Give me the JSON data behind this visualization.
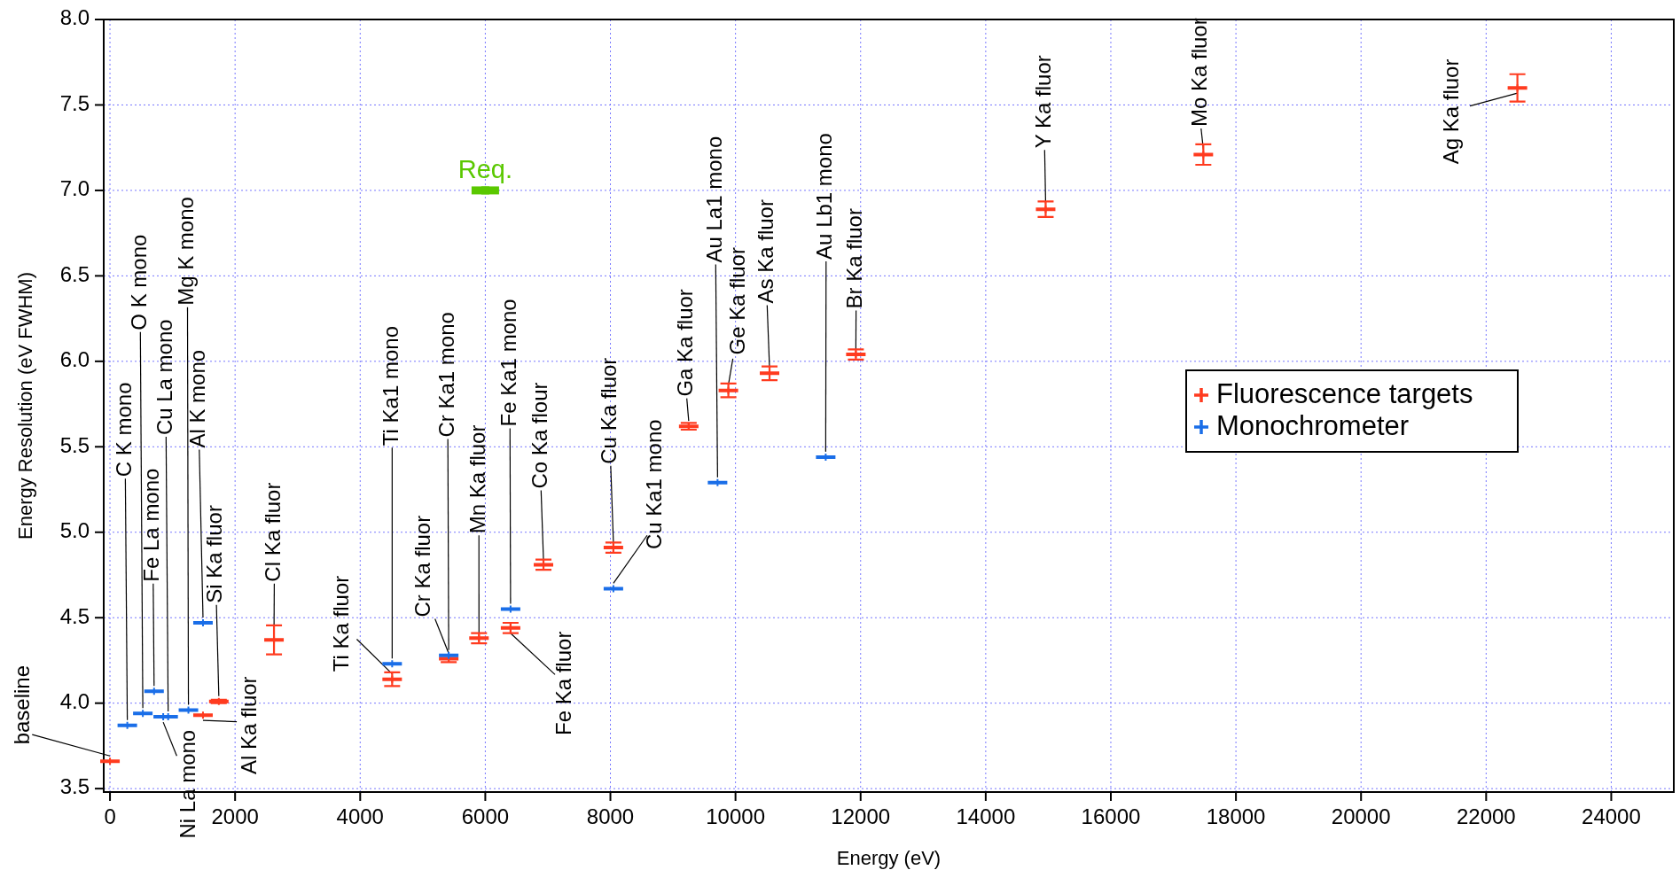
{
  "chart_data": {
    "type": "scatter",
    "xlabel": "Energy (eV)",
    "ylabel": "Energy Resolution (eV FWHM)",
    "xlim": [
      -100,
      25000
    ],
    "xticks": [
      0,
      2000,
      4000,
      6000,
      8000,
      10000,
      12000,
      14000,
      16000,
      18000,
      20000,
      22000,
      24000
    ],
    "ylim": [
      3.48,
      8.0
    ],
    "yticks": [
      3.5,
      {
        "value": 4,
        "label": "4.0"
      },
      4.5,
      {
        "value": 5,
        "label": "5.0"
      },
      5.5,
      {
        "value": 6,
        "label": "6.0"
      },
      6.5,
      {
        "value": 7,
        "label": "7.0"
      },
      7.5,
      {
        "value": 8,
        "label": "8.0"
      }
    ],
    "grid": true,
    "legend": "right",
    "marker": "cross",
    "series": [
      {
        "name": "Fluorescence targets",
        "color": "#ff3b1f",
        "x": [
          0,
          1487,
          1740,
          2622,
          4511,
          5415,
          5899,
          6404,
          6930,
          8048,
          9252,
          9886,
          10544,
          11924,
          14958,
          17479,
          22500
        ],
        "values": [
          3.66,
          3.93,
          4.01,
          4.37,
          4.14,
          4.26,
          4.38,
          4.44,
          4.81,
          4.91,
          5.62,
          5.83,
          5.93,
          6.04,
          6.89,
          7.21,
          7.6
        ],
        "errors": [
          null,
          null,
          0.01,
          0.085,
          0.04,
          0.02,
          0.03,
          0.03,
          0.03,
          0.03,
          0.02,
          0.04,
          0.04,
          0.03,
          0.045,
          0.06,
          0.08
        ]
      },
      {
        "name": "Monochrometer",
        "color": "#1a6ee8",
        "x": [
          277,
          525,
          705,
          851,
          930,
          1254,
          1487,
          4511,
          5415,
          6404,
          8048,
          9713,
          11442
        ],
        "values": [
          3.87,
          3.94,
          4.07,
          3.92,
          3.92,
          3.96,
          4.47,
          4.23,
          4.28,
          4.55,
          4.67,
          5.29,
          5.44
        ]
      },
      {
        "name": "Req.",
        "color": "#5ac800",
        "marker": "square",
        "x": [
          6000
        ],
        "values": [
          7.0
        ],
        "xerrors": [
          220
        ]
      }
    ],
    "annotations": [
      {
        "text": "baseline",
        "x": 0,
        "y": 3.66
      },
      {
        "text": "C K mono",
        "x": 277,
        "y": 3.87
      },
      {
        "text": "O K mono",
        "x": 525,
        "y": 3.94
      },
      {
        "text": "Fe La mono",
        "x": 705,
        "y": 4.07
      },
      {
        "text": "Cu La mono",
        "x": 930,
        "y": 3.92
      },
      {
        "text": "Ni La mono",
        "x": 851,
        "y": 3.92
      },
      {
        "text": "Mg K mono",
        "x": 1254,
        "y": 3.96
      },
      {
        "text": "Al K mono",
        "x": 1487,
        "y": 4.47
      },
      {
        "text": "Si Ka fluor",
        "x": 1740,
        "y": 4.01
      },
      {
        "text": "Al Ka fluor",
        "x": 1487,
        "y": 3.93
      },
      {
        "text": "Cl Ka fluor",
        "x": 2622,
        "y": 4.37
      },
      {
        "text": "Ti Ka fluor",
        "x": 4511,
        "y": 4.14
      },
      {
        "text": "Ti Ka1 mono",
        "x": 4511,
        "y": 4.23
      },
      {
        "text": "Cr Ka fluor",
        "x": 5415,
        "y": 4.26
      },
      {
        "text": "Cr Ka1 mono",
        "x": 5415,
        "y": 4.28
      },
      {
        "text": "Mn Ka fluor",
        "x": 5899,
        "y": 4.38
      },
      {
        "text": "Fe Ka1 mono",
        "x": 6404,
        "y": 4.55
      },
      {
        "text": "Fe Ka fluor",
        "x": 6404,
        "y": 4.44
      },
      {
        "text": "Co Ka flour",
        "x": 6930,
        "y": 4.81
      },
      {
        "text": "Cu Ka fluor",
        "x": 8048,
        "y": 4.91
      },
      {
        "text": "Cu Ka1 mono",
        "x": 8048,
        "y": 4.67
      },
      {
        "text": "Ga Ka fluor",
        "x": 9252,
        "y": 5.62
      },
      {
        "text": "Au La1 mono",
        "x": 9713,
        "y": 5.29
      },
      {
        "text": "Ge Ka fluor",
        "x": 9886,
        "y": 5.83
      },
      {
        "text": "As Ka fluor",
        "x": 10544,
        "y": 5.93
      },
      {
        "text": "Au Lb1 mono",
        "x": 11442,
        "y": 5.44
      },
      {
        "text": "Br Ka fluor",
        "x": 11924,
        "y": 6.04
      },
      {
        "text": "Y Ka fluor",
        "x": 14958,
        "y": 6.89
      },
      {
        "text": "Mo Ka fluor",
        "x": 17479,
        "y": 7.21
      },
      {
        "text": "Ag Ka fluor",
        "x": 22500,
        "y": 7.6
      }
    ]
  }
}
